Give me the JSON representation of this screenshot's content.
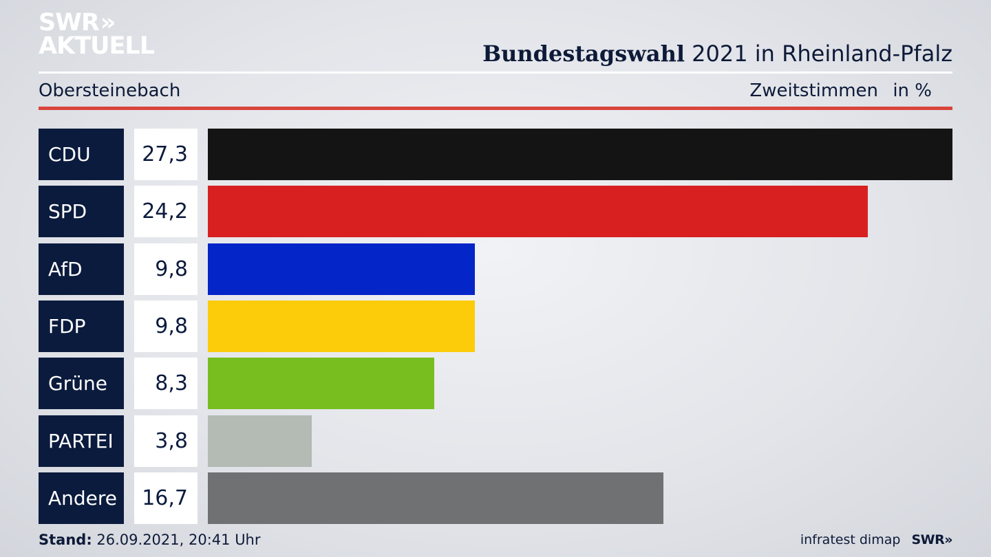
{
  "logo": {
    "line1": "SWR",
    "line1_mark": "»",
    "line2": "AKTUELL"
  },
  "header": {
    "title_bold": "Bundestagswahl",
    "title_rest": "2021 in Rheinland-Pfalz",
    "location": "Obersteinebach",
    "vote_type": "Zweitstimmen",
    "unit": "in %"
  },
  "footer": {
    "stand_label": "Stand:",
    "stand_value": "26.09.2021, 20:41 Uhr",
    "source": "infratest dimap",
    "brand": "SWR»"
  },
  "chart_data": {
    "type": "bar",
    "orientation": "horizontal",
    "categories": [
      "CDU",
      "SPD",
      "AfD",
      "FDP",
      "Grüne",
      "PARTEI",
      "Andere"
    ],
    "values": [
      27.3,
      24.2,
      9.8,
      9.8,
      8.3,
      3.8,
      16.7
    ],
    "value_labels": [
      "27,3",
      "24,2",
      "9,8",
      "9,8",
      "8,3",
      "3,8",
      "16,7"
    ],
    "colors": [
      "#141414",
      "#d82020",
      "#0425c8",
      "#fccc0a",
      "#78be1e",
      "#b3bbb4",
      "#707173"
    ],
    "title": "Bundestagswahl 2021 in Rheinland-Pfalz",
    "xlabel": "",
    "ylabel": "",
    "unit": "in %",
    "grid": false,
    "legend": "none"
  }
}
